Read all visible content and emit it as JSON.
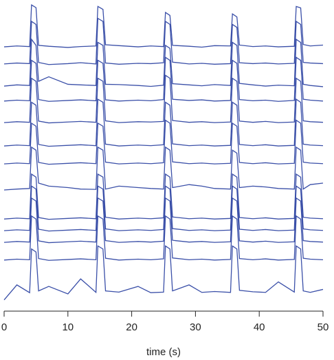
{
  "chart_data": {
    "type": "line",
    "xlabel": "time (s)",
    "color": "#3a4fa8",
    "xlim": [
      0,
      50
    ],
    "xticks": [
      0,
      10,
      20,
      30,
      40,
      50
    ],
    "ylim": [
      0,
      100
    ],
    "x": [
      0,
      2,
      4.0,
      4.3,
      5.0,
      5.4,
      7,
      10,
      12,
      14.4,
      14.7,
      15.5,
      15.9,
      18,
      21,
      23,
      25.0,
      25.3,
      26.0,
      26.4,
      29,
      31,
      33,
      35.5,
      35.8,
      36.5,
      36.9,
      39,
      41,
      43,
      45.5,
      45.8,
      46.5,
      46.9,
      48,
      50
    ],
    "series": [
      {
        "values": [
          85.5,
          85.8,
          85.6,
          99.5,
          98.6,
          86,
          85.7,
          85.3,
          85.6,
          85.8,
          99,
          98,
          86.2,
          85.9,
          85.5,
          85.8,
          85.6,
          97,
          96,
          86,
          85.7,
          85.4,
          85.9,
          85.8,
          96.5,
          95.5,
          86.1,
          85.6,
          85.8,
          85.5,
          85.7,
          99,
          98.5,
          86.3,
          85.8,
          86.1
        ]
      },
      {
        "values": [
          79.8,
          80.1,
          79.9,
          94,
          93,
          80.3,
          79.6,
          79.9,
          80.2,
          79.8,
          95,
          94,
          80.1,
          79.7,
          80,
          79.9,
          80.2,
          94,
          93,
          80.4,
          79.8,
          80,
          79.7,
          79.9,
          93,
          92,
          80.2,
          79.9,
          80.1,
          79.8,
          80,
          94,
          93,
          80.3,
          80.1,
          79.9
        ]
      },
      {
        "values": [
          72.4,
          72.8,
          72.6,
          88,
          86,
          74,
          75.5,
          73,
          72.8,
          72.6,
          87,
          86,
          73,
          72.9,
          72.6,
          72.3,
          72.7,
          86,
          85,
          73.2,
          72.8,
          72.5,
          72.9,
          72.6,
          87,
          86,
          73.3,
          72.8,
          72.4,
          72.7,
          72.5,
          88,
          87,
          73,
          72.6,
          72.2
        ]
      },
      {
        "values": [
          67.4,
          67.7,
          67.5,
          81,
          80,
          67.9,
          67.3,
          67.6,
          67.8,
          67.5,
          81,
          80,
          67.8,
          67.4,
          67.7,
          67.5,
          67.9,
          82,
          81,
          68,
          67.6,
          67.8,
          67.4,
          67.6,
          81,
          80,
          67.9,
          67.5,
          67.7,
          67.3,
          67.6,
          82,
          81,
          68,
          67.7,
          67.4
        ]
      },
      {
        "values": [
          60.2,
          60.5,
          60.3,
          75,
          74,
          60.7,
          60.1,
          60.4,
          60.6,
          60.3,
          75,
          74,
          60.8,
          60.2,
          60.5,
          60.4,
          60.6,
          76,
          75,
          60.9,
          60.3,
          60.5,
          60.2,
          60.4,
          75,
          74,
          60.7,
          60.3,
          60.6,
          60.2,
          60.4,
          75,
          74,
          60.8,
          60.5,
          60.3
        ]
      },
      {
        "values": [
          52.4,
          52.7,
          52.5,
          67,
          66,
          52.9,
          52.3,
          52.6,
          52.8,
          52.5,
          68,
          67,
          53,
          52.4,
          52.7,
          52.5,
          52.8,
          67,
          66,
          53.1,
          52.5,
          52.7,
          52.4,
          52.6,
          67,
          66,
          52.9,
          52.5,
          52.8,
          52.4,
          52.6,
          68,
          67,
          53,
          52.7,
          52.5
        ]
      },
      {
        "values": [
          46.4,
          46.7,
          46.5,
          60,
          59,
          46.9,
          46.3,
          46.6,
          46.8,
          46.5,
          60,
          59,
          47,
          46.4,
          46.7,
          46.5,
          46.8,
          61,
          60,
          47.1,
          46.5,
          46.7,
          46.4,
          46.6,
          60,
          59,
          46.9,
          46.5,
          46.8,
          46.4,
          46.6,
          61,
          60,
          47,
          46.7,
          46.5
        ]
      },
      {
        "values": [
          37.7,
          38,
          38.2,
          52,
          51,
          40,
          39,
          38.5,
          38,
          37.9,
          52,
          51,
          38,
          39,
          38.5,
          38.2,
          38,
          52,
          51,
          38.5,
          39.5,
          39,
          38.2,
          38,
          51,
          50,
          38.5,
          39,
          38.7,
          38.2,
          38,
          52,
          51,
          38,
          39.5,
          40
        ]
      },
      {
        "values": [
          28,
          28.3,
          28.1,
          43,
          42,
          28.5,
          27.9,
          28.2,
          28.4,
          28.1,
          43,
          42,
          28.6,
          28,
          28.3,
          28.1,
          28.4,
          43,
          42,
          28.7,
          28.1,
          28.3,
          28,
          28.2,
          43,
          42,
          28.5,
          28.1,
          28.4,
          28,
          28.2,
          43,
          42,
          28.6,
          28.3,
          28.1
        ]
      },
      {
        "values": [
          24.1,
          24.4,
          24.2,
          39,
          38,
          24.6,
          24,
          24.3,
          24.5,
          24.2,
          39,
          38,
          24.7,
          24.1,
          24.4,
          24.2,
          24.5,
          39,
          38,
          24.8,
          24.2,
          24.4,
          24.1,
          24.3,
          39,
          38,
          24.6,
          24.2,
          24.5,
          24.1,
          24.3,
          39,
          38,
          24.7,
          24.4,
          24.2
        ]
      },
      {
        "values": [
          20.2,
          20.5,
          20.3,
          35,
          34,
          20.7,
          20.1,
          20.4,
          20.6,
          20.3,
          35,
          34,
          20.8,
          20.2,
          20.5,
          20.3,
          20.6,
          35,
          34,
          20.9,
          20.3,
          20.5,
          20.2,
          20.4,
          35,
          34,
          20.7,
          20.3,
          20.6,
          20.2,
          20.4,
          35,
          34,
          20.8,
          20.5,
          20.3
        ]
      },
      {
        "values": [
          14.3,
          14.6,
          14.4,
          29,
          28,
          14.8,
          14.2,
          14.5,
          14.7,
          14.4,
          29,
          28,
          14.9,
          14.3,
          14.6,
          14.4,
          14.7,
          29,
          28,
          15,
          14.4,
          14.6,
          14.3,
          14.5,
          29,
          28,
          14.8,
          14.4,
          14.7,
          14.3,
          14.5,
          29,
          28,
          14.9,
          14.6,
          14.4
        ]
      },
      {
        "values": [
          1,
          6,
          3.4,
          18,
          17,
          4,
          5.5,
          3,
          8,
          3.5,
          19,
          18,
          4,
          3.6,
          5.5,
          3.4,
          3.6,
          19,
          18,
          4,
          6,
          3.5,
          3.8,
          3.5,
          19,
          18,
          4.2,
          3.7,
          3.5,
          7,
          3.6,
          19,
          18,
          4,
          3.5,
          4.5
        ]
      }
    ]
  }
}
